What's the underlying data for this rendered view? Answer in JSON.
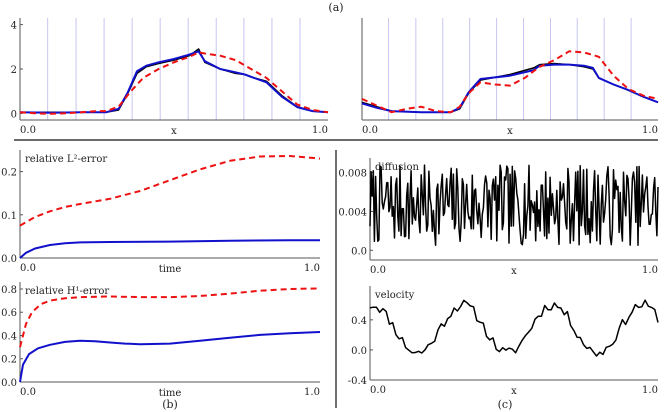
{
  "figure": {
    "label_a": "(a)",
    "label_b": "(b)",
    "label_c": "(c)"
  },
  "colors": {
    "blue": "#1111cc",
    "red": "#ee1111",
    "black": "#000000",
    "grid": "#b8b8ee",
    "axis": "#555555"
  },
  "chart_data": [
    {
      "id": "a1",
      "type": "line",
      "xlabel": "x",
      "xlim": [
        0,
        1
      ],
      "ylim": [
        -0.3,
        4.3
      ],
      "xticks": [
        {
          "v": 0,
          "t": "0.0"
        },
        {
          "v": 1,
          "t": "1.0"
        }
      ],
      "yticks": [
        {
          "v": 0,
          "t": "0"
        },
        {
          "v": 2,
          "t": "2"
        },
        {
          "v": 4,
          "t": "4"
        }
      ],
      "vlines": [
        0.09,
        0.182,
        0.273,
        0.364,
        0.455,
        0.546,
        0.637,
        0.727,
        0.818,
        0.909
      ],
      "series": [
        {
          "style": "black",
          "x": [
            0,
            0.1,
            0.2,
            0.28,
            0.32,
            0.35,
            0.38,
            0.41,
            0.45,
            0.5,
            0.55,
            0.58,
            0.6,
            0.65,
            0.7,
            0.73,
            0.76,
            0.8,
            0.85,
            0.9,
            0.95,
            1.0
          ],
          "y": [
            0.05,
            0.05,
            0.05,
            0.05,
            0.15,
            0.9,
            1.8,
            2.1,
            2.25,
            2.4,
            2.6,
            2.9,
            2.3,
            2.0,
            1.8,
            1.75,
            1.6,
            1.45,
            0.8,
            0.3,
            0.1,
            0.05
          ]
        },
        {
          "style": "blue",
          "x": [
            0,
            0.1,
            0.2,
            0.28,
            0.32,
            0.35,
            0.38,
            0.41,
            0.45,
            0.5,
            0.55,
            0.58,
            0.6,
            0.65,
            0.7,
            0.73,
            0.76,
            0.8,
            0.85,
            0.9,
            0.95,
            1.0
          ],
          "y": [
            0.05,
            0.03,
            0.05,
            0.05,
            0.2,
            0.95,
            1.9,
            2.15,
            2.3,
            2.45,
            2.65,
            2.8,
            2.35,
            2.0,
            1.85,
            1.75,
            1.6,
            1.4,
            0.75,
            0.28,
            0.1,
            0.05
          ]
        },
        {
          "style": "red",
          "x": [
            0,
            0.05,
            0.1,
            0.15,
            0.2,
            0.25,
            0.28,
            0.32,
            0.36,
            0.4,
            0.45,
            0.5,
            0.55,
            0.58,
            0.6,
            0.65,
            0.7,
            0.75,
            0.8,
            0.85,
            0.9,
            0.95,
            1.0
          ],
          "y": [
            0.05,
            0.0,
            -0.02,
            0.0,
            0.05,
            0.1,
            0.1,
            0.3,
            1.0,
            1.6,
            2.0,
            2.3,
            2.55,
            2.75,
            2.7,
            2.6,
            2.4,
            2.0,
            1.6,
            1.0,
            0.4,
            0.15,
            0.05
          ]
        }
      ]
    },
    {
      "id": "a2",
      "type": "line",
      "xlabel": "x",
      "xlim": [
        0,
        1
      ],
      "ylim": [
        -0.3,
        4.3
      ],
      "xticks": [
        {
          "v": 0,
          "t": "0.0"
        },
        {
          "v": 1,
          "t": "1.0"
        }
      ],
      "yticks": [],
      "vlines": [
        0.09,
        0.182,
        0.273,
        0.364,
        0.455,
        0.546,
        0.637,
        0.727,
        0.818,
        0.909
      ],
      "series": [
        {
          "style": "black",
          "x": [
            0,
            0.05,
            0.1,
            0.2,
            0.3,
            0.33,
            0.36,
            0.4,
            0.5,
            0.58,
            0.6,
            0.65,
            0.7,
            0.75,
            0.78,
            0.8,
            0.85,
            0.9,
            0.95,
            1.0
          ],
          "y": [
            0.5,
            0.3,
            0.1,
            0.05,
            0.05,
            0.2,
            0.9,
            1.5,
            1.75,
            2.05,
            2.2,
            2.25,
            2.2,
            2.1,
            2.0,
            1.6,
            1.3,
            1.05,
            0.75,
            0.5
          ]
        },
        {
          "style": "blue",
          "x": [
            0,
            0.05,
            0.1,
            0.2,
            0.3,
            0.33,
            0.36,
            0.4,
            0.5,
            0.58,
            0.6,
            0.65,
            0.7,
            0.75,
            0.78,
            0.8,
            0.85,
            0.9,
            0.95,
            1.0
          ],
          "y": [
            0.45,
            0.25,
            0.1,
            0.05,
            0.05,
            0.25,
            0.95,
            1.55,
            1.7,
            1.95,
            2.15,
            2.2,
            2.2,
            2.15,
            2.05,
            1.6,
            1.3,
            1.05,
            0.75,
            0.5
          ]
        },
        {
          "style": "red",
          "x": [
            0,
            0.05,
            0.1,
            0.15,
            0.2,
            0.25,
            0.3,
            0.33,
            0.36,
            0.4,
            0.45,
            0.5,
            0.55,
            0.6,
            0.65,
            0.7,
            0.75,
            0.8,
            0.85,
            0.9,
            0.95,
            1.0
          ],
          "y": [
            0.65,
            0.35,
            0.05,
            0.2,
            0.3,
            0.1,
            0.05,
            0.3,
            0.9,
            1.4,
            1.3,
            1.25,
            1.6,
            2.1,
            2.4,
            2.8,
            2.75,
            2.55,
            1.7,
            1.1,
            0.8,
            0.65
          ]
        }
      ]
    },
    {
      "id": "b1",
      "type": "line",
      "title": "relative L²-error",
      "xlabel": "time",
      "xlim": [
        0,
        1
      ],
      "ylim": [
        0,
        0.25
      ],
      "xticks": [
        {
          "v": 0,
          "t": "0.0"
        },
        {
          "v": 1,
          "t": "1.0"
        }
      ],
      "yticks": [
        {
          "v": 0,
          "t": "0.0"
        },
        {
          "v": 0.1,
          "t": "0.1"
        },
        {
          "v": 0.2,
          "t": "0.2"
        }
      ],
      "series": [
        {
          "style": "red",
          "x": [
            0,
            0.05,
            0.1,
            0.15,
            0.2,
            0.3,
            0.4,
            0.5,
            0.6,
            0.7,
            0.8,
            0.9,
            1.0
          ],
          "y": [
            0.075,
            0.095,
            0.108,
            0.118,
            0.125,
            0.137,
            0.155,
            0.18,
            0.205,
            0.225,
            0.235,
            0.236,
            0.23
          ]
        },
        {
          "style": "blue",
          "x": [
            0,
            0.02,
            0.05,
            0.1,
            0.15,
            0.2,
            0.3,
            0.5,
            0.7,
            0.9,
            1.0
          ],
          "y": [
            0.0,
            0.012,
            0.022,
            0.03,
            0.034,
            0.036,
            0.037,
            0.038,
            0.04,
            0.041,
            0.041
          ]
        }
      ]
    },
    {
      "id": "b2",
      "type": "line",
      "title": "relative H¹-error",
      "xlabel": "time",
      "xlim": [
        0,
        1
      ],
      "ylim": [
        0,
        0.86
      ],
      "xticks": [
        {
          "v": 0,
          "t": "0.0"
        },
        {
          "v": 1,
          "t": "1.0"
        }
      ],
      "yticks": [
        {
          "v": 0,
          "t": "0.0"
        },
        {
          "v": 0.2,
          "t": "0.2"
        },
        {
          "v": 0.4,
          "t": "0.4"
        },
        {
          "v": 0.6,
          "t": "0.6"
        },
        {
          "v": 0.8,
          "t": "0.8"
        }
      ],
      "series": [
        {
          "style": "red",
          "x": [
            0,
            0.02,
            0.04,
            0.07,
            0.1,
            0.15,
            0.2,
            0.3,
            0.4,
            0.5,
            0.6,
            0.7,
            0.8,
            0.9,
            1.0
          ],
          "y": [
            0.3,
            0.5,
            0.6,
            0.67,
            0.7,
            0.72,
            0.73,
            0.735,
            0.73,
            0.73,
            0.74,
            0.76,
            0.785,
            0.8,
            0.805
          ]
        },
        {
          "style": "blue",
          "x": [
            0,
            0.01,
            0.03,
            0.06,
            0.1,
            0.15,
            0.2,
            0.25,
            0.3,
            0.35,
            0.4,
            0.5,
            0.6,
            0.7,
            0.8,
            0.9,
            1.0
          ],
          "y": [
            0.0,
            0.15,
            0.24,
            0.29,
            0.32,
            0.345,
            0.355,
            0.35,
            0.34,
            0.33,
            0.325,
            0.33,
            0.355,
            0.38,
            0.405,
            0.42,
            0.43
          ]
        }
      ]
    },
    {
      "id": "c1",
      "type": "line",
      "title": "diffusion",
      "xlabel": "x",
      "xlim": [
        0,
        1
      ],
      "ylim": [
        -0.001,
        0.0095
      ],
      "noise": {
        "n": 260,
        "lo": 0.0005,
        "hi": 0.0088,
        "seed": 7
      },
      "xticks": [
        {
          "v": 0,
          "t": "0.0"
        },
        {
          "v": 1,
          "t": "1.0"
        }
      ],
      "yticks": [
        {
          "v": 0,
          "t": "0.0"
        },
        {
          "v": 0.004,
          "t": "0.004"
        },
        {
          "v": 0.008,
          "t": "0.008"
        }
      ],
      "series": [
        {
          "style": "black",
          "x": [],
          "y": []
        }
      ]
    },
    {
      "id": "c2",
      "type": "line",
      "title": "velocity",
      "xlabel": "x",
      "xlim": [
        0,
        1
      ],
      "ylim": [
        -0.4,
        0.85
      ],
      "wave": {
        "n": 90,
        "amp": 0.32,
        "offset": 0.28,
        "periods": 3.2,
        "phase": 1.4,
        "jitter": 0.07,
        "seed": 11
      },
      "xticks": [
        {
          "v": 0,
          "t": "0.0"
        },
        {
          "v": 1,
          "t": "1.0"
        }
      ],
      "yticks": [
        {
          "v": -0.4,
          "t": "-0.4"
        },
        {
          "v": 0.0,
          "t": "0.0"
        },
        {
          "v": 0.4,
          "t": "0.4"
        }
      ],
      "series": [
        {
          "style": "black",
          "x": [],
          "y": []
        }
      ]
    }
  ]
}
